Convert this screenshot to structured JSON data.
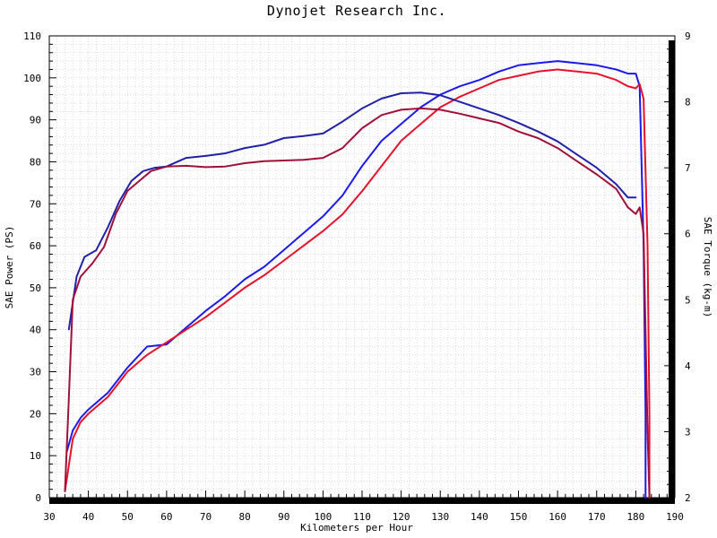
{
  "chart_data": {
    "type": "line",
    "title": "Dynojet  Research  Inc.",
    "xlabel": "Kilometers per Hour",
    "ylabel_left": "SAE Power (PS)",
    "ylabel_right": "SAE Torque (kg-m)",
    "xlim": [
      30,
      190
    ],
    "ylim_left": [
      0,
      110
    ],
    "ylim_right": [
      2,
      9
    ],
    "x_ticks": [
      30,
      40,
      50,
      60,
      70,
      80,
      90,
      100,
      110,
      120,
      130,
      140,
      150,
      160,
      170,
      180,
      190
    ],
    "y_left_ticks": [
      0,
      10,
      20,
      30,
      40,
      50,
      60,
      70,
      80,
      90,
      100,
      110
    ],
    "y_right_ticks": [
      2,
      3,
      4,
      5,
      6,
      7,
      8,
      9
    ],
    "grid": true,
    "colors": {
      "blue": "#1a1aee",
      "red": "#e8102a",
      "navy": "#2020a8",
      "maroon": "#a0103a"
    },
    "series": [
      {
        "axis": "left",
        "color": "#1a1aee",
        "points": [
          [
            34.5,
            11
          ],
          [
            36,
            16
          ],
          [
            38,
            19
          ],
          [
            40,
            21
          ],
          [
            45,
            25
          ],
          [
            50,
            31
          ],
          [
            55,
            36
          ],
          [
            60,
            36.5
          ],
          [
            65,
            40.5
          ],
          [
            70,
            44.5
          ],
          [
            75,
            48
          ],
          [
            80,
            52
          ],
          [
            85,
            55
          ],
          [
            90,
            59
          ],
          [
            95,
            63
          ],
          [
            100,
            67
          ],
          [
            105,
            72
          ],
          [
            110,
            79
          ],
          [
            115,
            85
          ],
          [
            120,
            89
          ],
          [
            125,
            93
          ],
          [
            130,
            96
          ],
          [
            135,
            98
          ],
          [
            140,
            99.5
          ],
          [
            145,
            101.5
          ],
          [
            150,
            103
          ],
          [
            155,
            103.5
          ],
          [
            160,
            104
          ],
          [
            165,
            103.5
          ],
          [
            170,
            103
          ],
          [
            175,
            102
          ],
          [
            178,
            101
          ],
          [
            180,
            101
          ],
          [
            181,
            98
          ],
          [
            182,
            60
          ],
          [
            182.5,
            20
          ],
          [
            182.5,
            0
          ]
        ]
      },
      {
        "axis": "left",
        "color": "#e8102a",
        "points": [
          [
            34,
            1.5
          ],
          [
            36,
            14
          ],
          [
            38,
            18
          ],
          [
            40,
            20
          ],
          [
            45,
            24
          ],
          [
            50,
            30
          ],
          [
            55,
            34
          ],
          [
            60,
            37
          ],
          [
            65,
            40
          ],
          [
            70,
            43
          ],
          [
            75,
            46.5
          ],
          [
            80,
            50
          ],
          [
            85,
            53
          ],
          [
            90,
            56.5
          ],
          [
            95,
            60
          ],
          [
            100,
            63.5
          ],
          [
            105,
            67.5
          ],
          [
            110,
            73
          ],
          [
            115,
            79
          ],
          [
            120,
            85
          ],
          [
            125,
            89
          ],
          [
            130,
            93
          ],
          [
            135,
            95.5
          ],
          [
            140,
            97.5
          ],
          [
            145,
            99.5
          ],
          [
            150,
            100.5
          ],
          [
            155,
            101.5
          ],
          [
            160,
            102
          ],
          [
            165,
            101.5
          ],
          [
            170,
            101
          ],
          [
            175,
            99.5
          ],
          [
            178,
            98
          ],
          [
            180,
            97.5
          ],
          [
            181,
            98.5
          ],
          [
            182,
            95
          ],
          [
            183,
            60
          ],
          [
            183.5,
            20
          ],
          [
            183.5,
            0
          ]
        ]
      },
      {
        "axis": "right",
        "color": "#2020a8",
        "points": [
          [
            35,
            4.55
          ],
          [
            37,
            5.35
          ],
          [
            39,
            5.65
          ],
          [
            42,
            5.75
          ],
          [
            45,
            6.1
          ],
          [
            48,
            6.5
          ],
          [
            51,
            6.8
          ],
          [
            54,
            6.95
          ],
          [
            57,
            7
          ],
          [
            60,
            7.02
          ],
          [
            65,
            7.15
          ],
          [
            70,
            7.18
          ],
          [
            75,
            7.22
          ],
          [
            80,
            7.3
          ],
          [
            85,
            7.35
          ],
          [
            90,
            7.45
          ],
          [
            95,
            7.48
          ],
          [
            100,
            7.52
          ],
          [
            105,
            7.7
          ],
          [
            110,
            7.9
          ],
          [
            115,
            8.05
          ],
          [
            120,
            8.13
          ],
          [
            125,
            8.14
          ],
          [
            130,
            8.1
          ],
          [
            135,
            8
          ],
          [
            140,
            7.9
          ],
          [
            145,
            7.8
          ],
          [
            150,
            7.68
          ],
          [
            155,
            7.55
          ],
          [
            160,
            7.4
          ],
          [
            165,
            7.2
          ],
          [
            170,
            7
          ],
          [
            175,
            6.75
          ],
          [
            178,
            6.55
          ],
          [
            180,
            6.55
          ]
        ]
      },
      {
        "axis": "right",
        "color": "#a0103a",
        "points": [
          [
            34,
            2.1
          ],
          [
            35,
            3.5
          ],
          [
            36,
            5
          ],
          [
            38,
            5.35
          ],
          [
            41,
            5.55
          ],
          [
            44,
            5.8
          ],
          [
            47,
            6.3
          ],
          [
            50,
            6.65
          ],
          [
            53,
            6.8
          ],
          [
            56,
            6.95
          ],
          [
            60,
            7.02
          ],
          [
            65,
            7.03
          ],
          [
            70,
            7.01
          ],
          [
            75,
            7.02
          ],
          [
            80,
            7.07
          ],
          [
            85,
            7.1
          ],
          [
            90,
            7.11
          ],
          [
            95,
            7.12
          ],
          [
            100,
            7.15
          ],
          [
            105,
            7.3
          ],
          [
            110,
            7.6
          ],
          [
            115,
            7.8
          ],
          [
            120,
            7.88
          ],
          [
            125,
            7.9
          ],
          [
            130,
            7.88
          ],
          [
            135,
            7.82
          ],
          [
            140,
            7.75
          ],
          [
            145,
            7.68
          ],
          [
            150,
            7.55
          ],
          [
            155,
            7.45
          ],
          [
            160,
            7.3
          ],
          [
            165,
            7.1
          ],
          [
            170,
            6.9
          ],
          [
            175,
            6.68
          ],
          [
            178,
            6.4
          ],
          [
            180,
            6.3
          ],
          [
            181,
            6.4
          ],
          [
            182,
            6
          ],
          [
            183,
            3
          ],
          [
            183.5,
            2
          ]
        ]
      }
    ]
  }
}
